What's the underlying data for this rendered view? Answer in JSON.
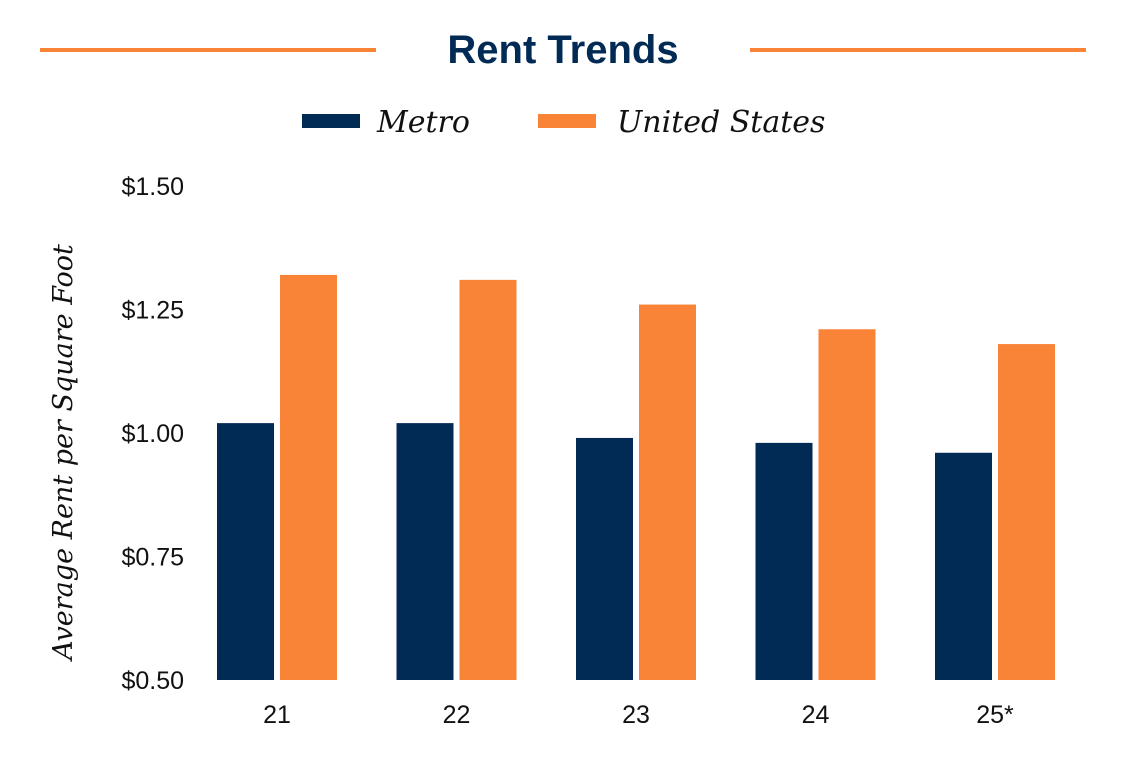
{
  "colors": {
    "metro": "#012a55",
    "united_states": "#f98337",
    "title": "#012a55",
    "rule": "#f98337",
    "text": "#111111"
  },
  "chart_data": {
    "type": "bar",
    "title": "Rent Trends",
    "xlabel": "",
    "ylabel": "Average Rent per Square Foot",
    "categories": [
      "21",
      "22",
      "23",
      "24",
      "25*"
    ],
    "series": [
      {
        "name": "Metro",
        "values": [
          1.02,
          1.02,
          0.99,
          0.98,
          0.96
        ]
      },
      {
        "name": "United States",
        "values": [
          1.32,
          1.31,
          1.26,
          1.21,
          1.18
        ]
      }
    ],
    "ylim": [
      0.5,
      1.5
    ],
    "yticks": [
      1.5,
      1.25,
      1.0,
      0.75,
      0.5
    ],
    "ytick_labels": [
      "$1.50",
      "$1.25",
      "$1.00",
      "$0.75",
      "$0.50"
    ],
    "grid": false,
    "legend": "top-center"
  }
}
